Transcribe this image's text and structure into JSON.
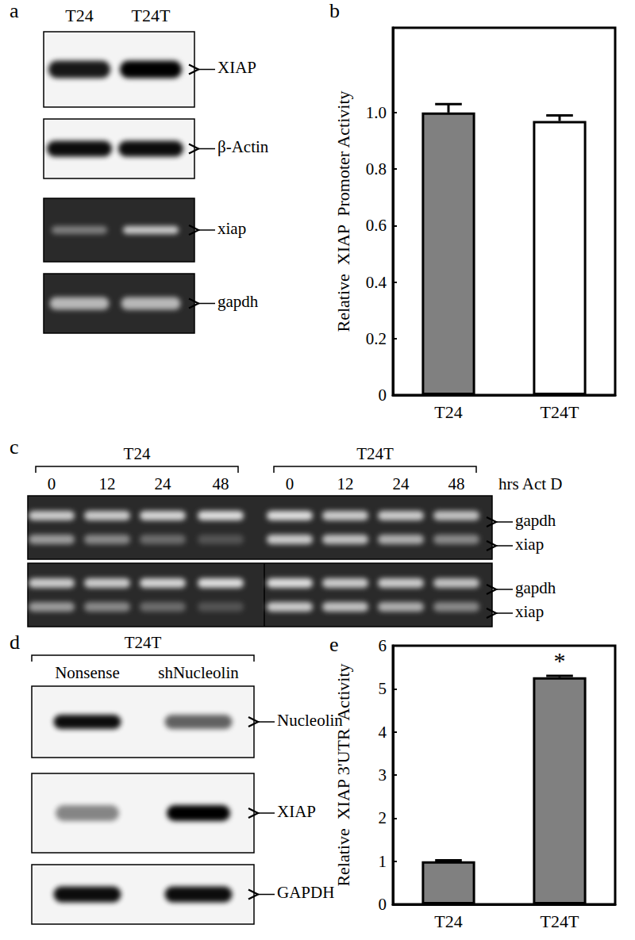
{
  "panels": [
    {
      "panel": "a",
      "lanes": [
        "T24",
        "T24T"
      ],
      "blots": [
        "XIAP",
        "β-Actin",
        "xiap",
        "gapdh"
      ]
    },
    {
      "panel": "c",
      "groups": [
        {
          "label": "T24",
          "lanes": [
            "0",
            "12",
            "24",
            "48"
          ]
        },
        {
          "label": "T24T",
          "lanes": [
            "0",
            "12",
            "24",
            "48"
          ]
        }
      ],
      "unit": "hrs Act D",
      "bands": [
        "gapdh",
        "xiap"
      ]
    },
    {
      "panel": "d",
      "group": "T24T",
      "lanes": [
        "Nonsense",
        "shNucleolin"
      ],
      "blots": [
        "Nucleolin",
        "XIAP",
        "GAPDH"
      ]
    }
  ],
  "chart_data": [
    {
      "panel": "b",
      "type": "bar",
      "ylabel": "Relative  XIAP  Promoter Activity",
      "categories": [
        "T24",
        "T24T"
      ],
      "values": [
        1.0,
        0.97
      ],
      "errors": [
        0.03,
        0.02
      ],
      "colors": [
        "#808080",
        "#ffffff"
      ],
      "ylim": [
        0,
        1.3
      ],
      "yticks": [
        0,
        0.2,
        0.4,
        0.6,
        0.8,
        {
          "value": 1,
          "label": "1.0"
        }
      ],
      "grid": false
    },
    {
      "panel": "e",
      "type": "bar",
      "ylabel": "Relative  XIAP 3'UTR  Activity",
      "categories": [
        "T24",
        "T24T"
      ],
      "values": [
        1.0,
        5.27
      ],
      "errors": [
        0.02,
        0.03
      ],
      "colors": [
        "#808080",
        "#808080"
      ],
      "ylim": [
        0,
        6
      ],
      "yticks": [
        0,
        1,
        2,
        3,
        4,
        5,
        6
      ],
      "annotations": [
        {
          "text": "*",
          "category": "T24T"
        }
      ],
      "grid": false
    }
  ]
}
